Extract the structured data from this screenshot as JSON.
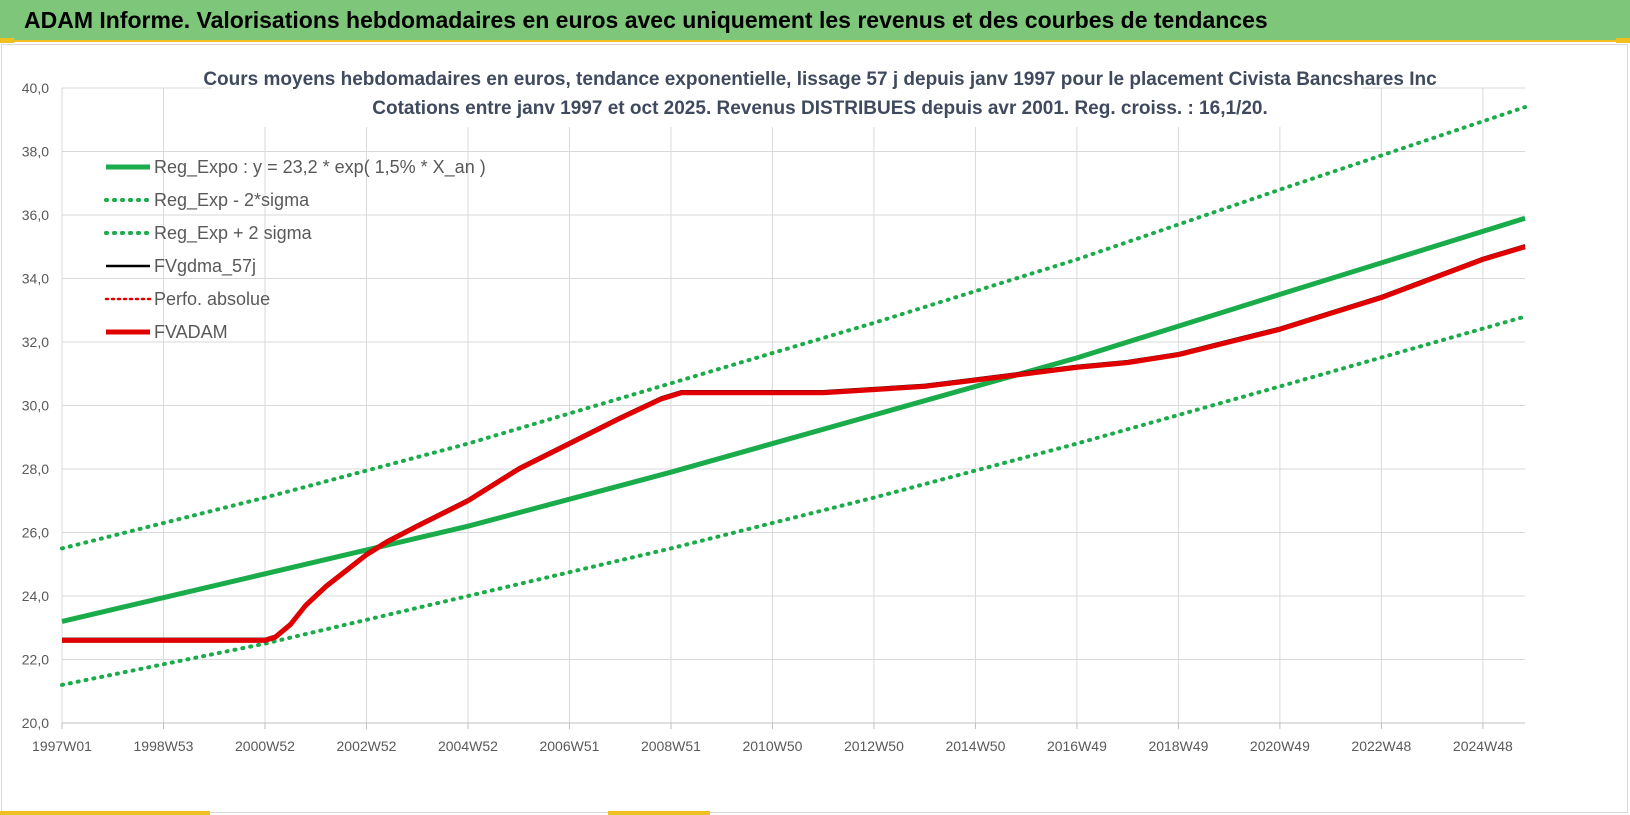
{
  "banner": {
    "title": "ADAM Informe. Valorisations hebdomadaires en euros avec uniquement les revenus et des courbes de tendances"
  },
  "colors": {
    "banner_bg": "#7dc67a",
    "accent": "#f0c020",
    "trend_green": "#1aab4a",
    "black": "#000000",
    "red": "#e00000"
  },
  "chart_data": {
    "type": "line",
    "title": "Cours moyens hebdomadaires en euros, tendance exponentielle, lissage 57 j depuis janv 1997 pour le placement Civista Bancshares Inc",
    "subtitle": "Cotations entre janv 1997 et oct 2025. Revenus DISTRIBUES depuis avr 2001. Reg. croiss. : 16,1/20.",
    "xlabel": "",
    "ylabel": "",
    "xlim": [
      1997.0,
      2025.83
    ],
    "ylim": [
      20,
      40
    ],
    "y_ticks": [
      "20,0",
      "22,0",
      "24,0",
      "26,0",
      "28,0",
      "30,0",
      "32,0",
      "34,0",
      "36,0",
      "38,0",
      "40,0"
    ],
    "x_ticks": [
      {
        "label": "1997W01",
        "x": 1997.0
      },
      {
        "label": "1998W53",
        "x": 1999.0
      },
      {
        "label": "2000W52",
        "x": 2001.0
      },
      {
        "label": "2002W52",
        "x": 2003.0
      },
      {
        "label": "2004W52",
        "x": 2005.0
      },
      {
        "label": "2006W51",
        "x": 2007.0
      },
      {
        "label": "2008W51",
        "x": 2009.0
      },
      {
        "label": "2010W50",
        "x": 2011.0
      },
      {
        "label": "2012W50",
        "x": 2013.0
      },
      {
        "label": "2014W50",
        "x": 2015.0
      },
      {
        "label": "2016W49",
        "x": 2017.0
      },
      {
        "label": "2018W49",
        "x": 2019.0
      },
      {
        "label": "2020W49",
        "x": 2021.0
      },
      {
        "label": "2022W48",
        "x": 2023.0
      },
      {
        "label": "2024W48",
        "x": 2025.0
      }
    ],
    "grid": true,
    "legend_position": "top-left",
    "series": [
      {
        "name": "Reg_Expo : y = 23,2 * exp( 1,5% *  X_an )",
        "style": "solid-thick",
        "color": "#1aab4a",
        "x": [
          1997.0,
          2001.0,
          2005.0,
          2009.0,
          2013.0,
          2017.0,
          2021.0,
          2025.83
        ],
        "y": [
          23.2,
          24.7,
          26.2,
          27.9,
          29.7,
          31.5,
          33.5,
          35.9
        ]
      },
      {
        "name": "Reg_Exp - 2*sigma",
        "style": "dotted-thick",
        "color": "#1aab4a",
        "x": [
          1997.0,
          2001.0,
          2005.0,
          2009.0,
          2013.0,
          2017.0,
          2021.0,
          2025.83
        ],
        "y": [
          21.2,
          22.5,
          24.0,
          25.5,
          27.1,
          28.8,
          30.6,
          32.8
        ]
      },
      {
        "name": "Reg_Exp + 2 sigma",
        "style": "dotted-thick",
        "color": "#1aab4a",
        "x": [
          1997.0,
          2001.0,
          2005.0,
          2009.0,
          2013.0,
          2017.0,
          2021.0,
          2025.83
        ],
        "y": [
          25.5,
          27.1,
          28.8,
          30.7,
          32.6,
          34.6,
          36.8,
          39.4
        ]
      },
      {
        "name": "FVgdma_57j",
        "style": "solid",
        "color": "#000000",
        "x": [
          1997.0,
          2001.0,
          2001.2,
          2001.5,
          2001.8,
          2002.2,
          2002.6,
          2003.0,
          2003.4,
          2004.0,
          2005.0,
          2006.0,
          2007.0,
          2008.0,
          2008.8,
          2009.2,
          2010.0,
          2011.0,
          2012.0,
          2013.0,
          2014.0,
          2015.0,
          2016.0,
          2017.0,
          2018.0,
          2019.0,
          2020.0,
          2021.0,
          2022.0,
          2023.0,
          2024.0,
          2025.0,
          2025.83
        ],
        "y": [
          22.6,
          22.6,
          22.7,
          23.1,
          23.7,
          24.3,
          24.8,
          25.3,
          25.7,
          26.2,
          27.0,
          28.0,
          28.8,
          29.6,
          30.2,
          30.4,
          30.4,
          30.4,
          30.4,
          30.5,
          30.6,
          30.8,
          31.0,
          31.2,
          31.35,
          31.6,
          32.0,
          32.4,
          32.9,
          33.4,
          34.0,
          34.6,
          35.0
        ]
      },
      {
        "name": "Perfo. absolue",
        "style": "dotted",
        "color": "#e00000",
        "x": [],
        "y": []
      },
      {
        "name": "FVADAM",
        "style": "solid-thick",
        "color": "#e00000",
        "x": [
          1997.0,
          2001.0,
          2001.2,
          2001.5,
          2001.8,
          2002.2,
          2002.6,
          2003.0,
          2003.4,
          2004.0,
          2005.0,
          2006.0,
          2007.0,
          2008.0,
          2008.8,
          2009.2,
          2010.0,
          2011.0,
          2012.0,
          2013.0,
          2014.0,
          2015.0,
          2016.0,
          2017.0,
          2018.0,
          2019.0,
          2020.0,
          2021.0,
          2022.0,
          2023.0,
          2024.0,
          2025.0,
          2025.83
        ],
        "y": [
          22.6,
          22.6,
          22.7,
          23.1,
          23.7,
          24.3,
          24.8,
          25.3,
          25.7,
          26.2,
          27.0,
          28.0,
          28.8,
          29.6,
          30.2,
          30.4,
          30.4,
          30.4,
          30.4,
          30.5,
          30.6,
          30.8,
          31.0,
          31.2,
          31.35,
          31.6,
          32.0,
          32.4,
          32.9,
          33.4,
          34.0,
          34.6,
          35.0
        ]
      }
    ]
  }
}
